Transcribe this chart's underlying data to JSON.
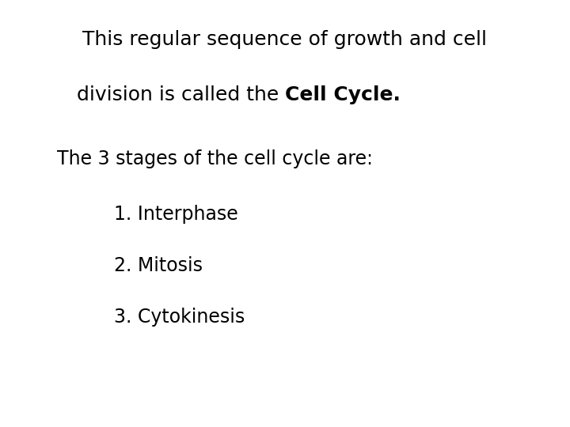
{
  "background_color": "#ffffff",
  "line1": "This regular sequence of growth and cell",
  "line2_normal": "division is called the ",
  "line2_bold": "Cell Cycle.",
  "line3": "The 3 stages of the cell cycle are:",
  "item1": "1. Interphase",
  "item2": "2. Mitosis",
  "item3": "3. Cytokinesis",
  "text_color": "#000000",
  "font_size_main": 18,
  "font_size_sub": 17,
  "font_size_items": 17
}
